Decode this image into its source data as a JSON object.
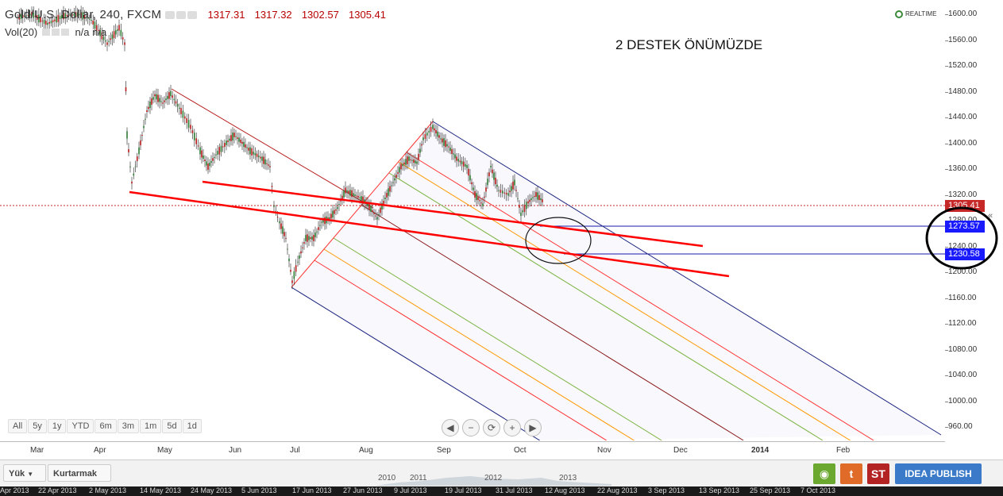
{
  "legend": {
    "symbol": "Gold/U.S. Dollar, 240, FXCM",
    "open": "1317.31",
    "high": "1317.32",
    "low": "1302.57",
    "close": "1305.41",
    "volume": "Vol(20)",
    "volume_value": "n/a  n/a"
  },
  "realtime_label": "REALTIME",
  "annotation_text": "2 DESTEK ÖNÜMÜZDE",
  "price_ticks": [
    "1600.00",
    "1560.00",
    "1520.00",
    "1480.00",
    "1440.00",
    "1400.00",
    "1360.00",
    "1320.00",
    "1280.00",
    "1240.00",
    "1200.00",
    "1160.00",
    "1120.00",
    "1080.00",
    "1040.00",
    "1000.00",
    "960.00"
  ],
  "price_labels": {
    "last": "1305.41",
    "support1": "1273.57",
    "support2": "1230.58"
  },
  "time_ticks": [
    "Mar",
    "Apr",
    "May",
    "Jun",
    "Jul",
    "Aug",
    "Sep",
    "Oct",
    "Nov",
    "Dec",
    "2014",
    "Feb"
  ],
  "range_buttons": [
    "All",
    "5y",
    "1y",
    "YTD",
    "6m",
    "3m",
    "1m",
    "5d",
    "1d"
  ],
  "nav_controls": [
    "◀",
    "−",
    "⟳",
    "+",
    "▶"
  ],
  "bottom": {
    "load_label": "Yük",
    "save_label": "Kurtarmak",
    "snapshot_icon": "camera-icon",
    "twitter_label": "t",
    "st_label": "ST",
    "publish_label": "IDEA PUBLISH"
  },
  "navigator_years": [
    "2010",
    "2011",
    "2012",
    "2013"
  ],
  "date_strip": [
    "Apr 2013",
    "22 Apr 2013",
    "2 May 2013",
    "14 May 2013",
    "24 May 2013",
    "5 Jun 2013",
    "17 Jun 2013",
    "27 Jun 2013",
    "9 Jul 2013",
    "19 Jul 2013",
    "31 Jul 2013",
    "12 Aug 2013",
    "22 Aug 2013",
    "3 Sep 2013",
    "13 Sep 2013",
    "25 Sep 2013",
    "7 Oct 2013"
  ],
  "colors": {
    "candle_up": "#2e7d32",
    "candle_down": "#b71c1c",
    "support_line": "#ff0000",
    "channel_outer": "#1a237e",
    "price_last_bg": "#c62828",
    "price_support_bg": "#1a1aff",
    "publish_bg": "#3a7ac8"
  }
}
